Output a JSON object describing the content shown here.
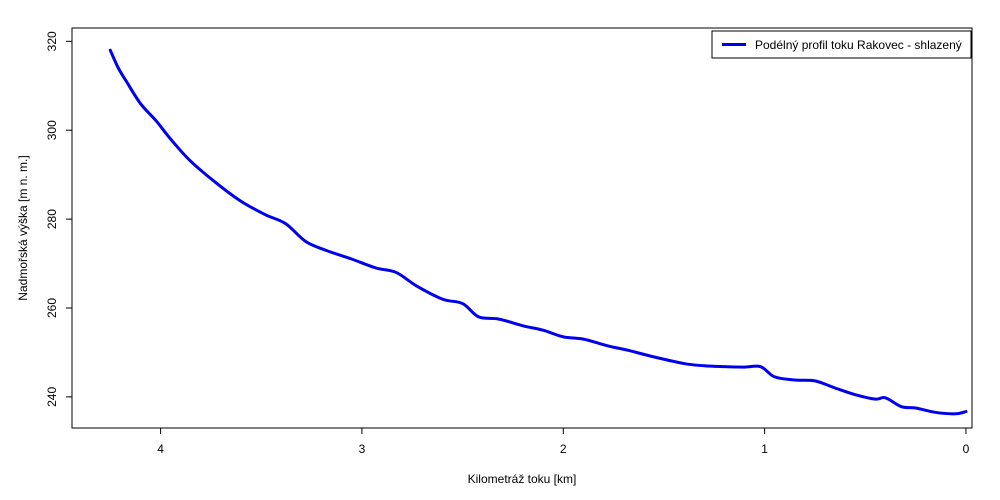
{
  "chart_data": {
    "type": "line",
    "title": "",
    "xlabel": "Kilometráž toku [km]",
    "ylabel": "Nadmořská výška [m n. m.]",
    "xlim": [
      4.44,
      -0.03
    ],
    "ylim": [
      233,
      323
    ],
    "x_reversed": true,
    "x_ticks": [
      4,
      3,
      2,
      1,
      0
    ],
    "x_tick_labels": [
      "4",
      "3",
      "2",
      "1",
      "0"
    ],
    "y_ticks": [
      240,
      260,
      280,
      300,
      320
    ],
    "y_tick_labels": [
      "240",
      "260",
      "280",
      "300",
      "320"
    ],
    "grid": false,
    "legend": {
      "position": "top-right",
      "entries": [
        "Podélný profil toku Rakovec - shlazený"
      ]
    },
    "series": [
      {
        "name": "Podélný profil toku Rakovec - shlazený",
        "color": "#0000ee",
        "x": [
          4.25,
          4.21,
          4.17,
          4.1,
          4.02,
          3.95,
          3.85,
          3.72,
          3.6,
          3.48,
          3.38,
          3.28,
          3.18,
          3.05,
          2.93,
          2.83,
          2.73,
          2.6,
          2.5,
          2.42,
          2.32,
          2.2,
          2.1,
          2.0,
          1.9,
          1.78,
          1.68,
          1.55,
          1.4,
          1.3,
          1.2,
          1.1,
          1.02,
          0.95,
          0.85,
          0.75,
          0.65,
          0.55,
          0.45,
          0.4,
          0.32,
          0.25,
          0.15,
          0.05,
          0.0
        ],
        "y": [
          318,
          314,
          311,
          306,
          302,
          298,
          293,
          288,
          284,
          281,
          279,
          275,
          273,
          271,
          269,
          268,
          265,
          262,
          261,
          258,
          257.5,
          256,
          255,
          253.5,
          253,
          251.5,
          250.5,
          249,
          247.5,
          247,
          246.8,
          246.7,
          246.8,
          244.5,
          243.8,
          243.6,
          242,
          240.5,
          239.5,
          239.8,
          237.8,
          237.5,
          236.5,
          236.2,
          236.7
        ]
      }
    ]
  }
}
